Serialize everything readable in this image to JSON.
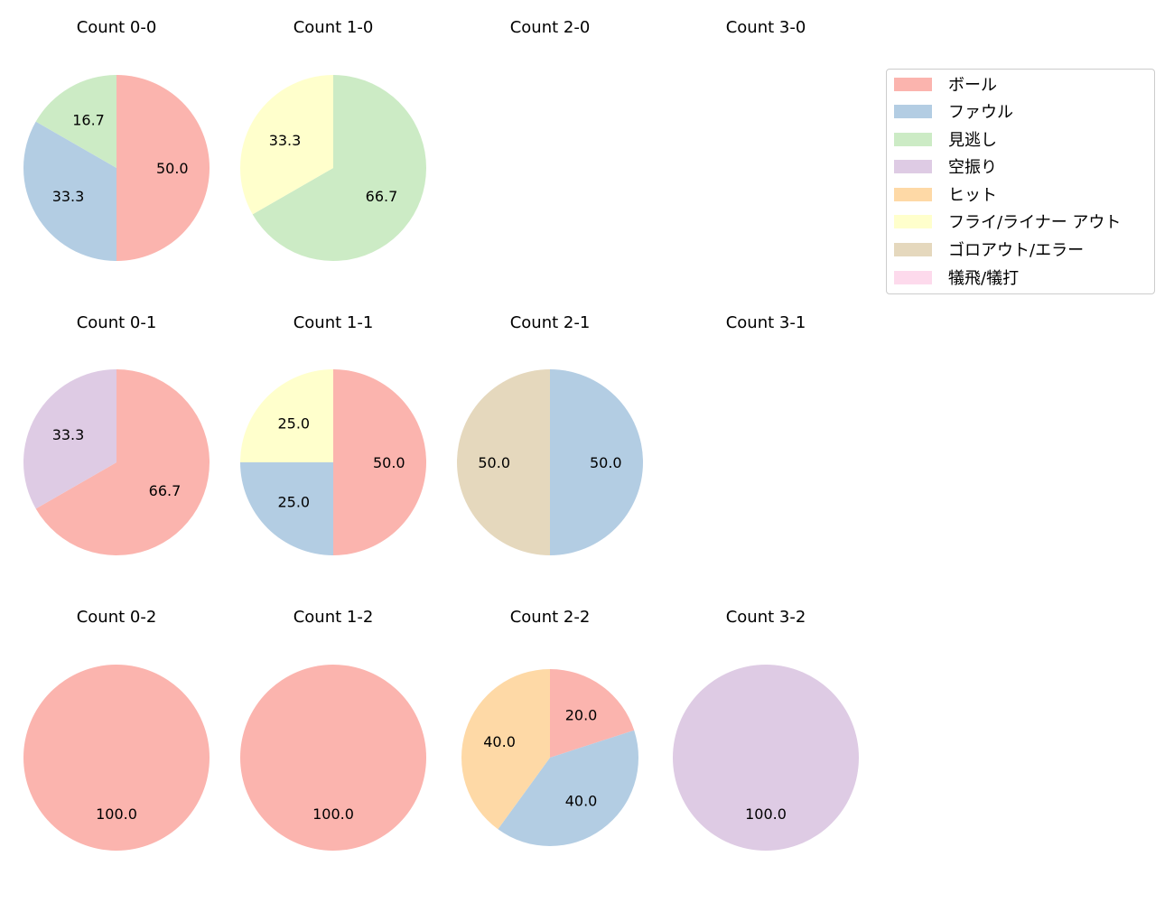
{
  "chart_data": {
    "type": "pie",
    "layout": {
      "rows": 3,
      "cols": 4,
      "start_angle": 90,
      "direction": "clockwise",
      "label_format": "%.1f"
    },
    "categories": [
      "ボール",
      "ファウル",
      "見逃し",
      "空振り",
      "ヒット",
      "フライ/ライナー アウト",
      "ゴロアウト/エラー",
      "犠飛/犠打"
    ],
    "colors": [
      "#fbb4ae",
      "#b3cde3",
      "#ccebc5",
      "#decbe4",
      "#fed9a6",
      "#ffffcc",
      "#e5d8bd",
      "#fddaec"
    ],
    "subplots": [
      {
        "title": "Count 0-0",
        "values": {
          "ボール": 50.0,
          "ファウル": 33.3,
          "見逃し": 16.7
        }
      },
      {
        "title": "Count 1-0",
        "values": {
          "見逃し": 66.7,
          "フライ/ライナー アウト": 33.3
        }
      },
      {
        "title": "Count 2-0",
        "values": {}
      },
      {
        "title": "Count 3-0",
        "values": {}
      },
      {
        "title": "Count 0-1",
        "values": {
          "ボール": 66.7,
          "空振り": 33.3
        }
      },
      {
        "title": "Count 1-1",
        "values": {
          "ボール": 50.0,
          "ファウル": 25.0,
          "フライ/ライナー アウト": 25.0
        }
      },
      {
        "title": "Count 2-1",
        "values": {
          "ファウル": 50.0,
          "ゴロアウト/エラー": 50.0
        }
      },
      {
        "title": "Count 3-1",
        "values": {}
      },
      {
        "title": "Count 0-2",
        "values": {
          "ボール": 100.0
        }
      },
      {
        "title": "Count 1-2",
        "values": {
          "ボール": 100.0
        }
      },
      {
        "title": "Count 2-2",
        "values": {
          "ボール": 20.0,
          "ファウル": 40.0,
          "ヒット": 40.0
        }
      },
      {
        "title": "Count 3-2",
        "values": {
          "空振り": 100.0
        }
      }
    ]
  },
  "legend": {
    "items": [
      {
        "label": "ボール",
        "color": "#fbb4ae"
      },
      {
        "label": "ファウル",
        "color": "#b3cde3"
      },
      {
        "label": "見逃し",
        "color": "#ccebc5"
      },
      {
        "label": "空振り",
        "color": "#decbe4"
      },
      {
        "label": "ヒット",
        "color": "#fed9a6"
      },
      {
        "label": "フライ/ライナー アウト",
        "color": "#ffffcc"
      },
      {
        "label": "ゴロアウト/エラー",
        "color": "#e5d8bd"
      },
      {
        "label": "犠飛/犠打",
        "color": "#fddaec"
      }
    ]
  }
}
